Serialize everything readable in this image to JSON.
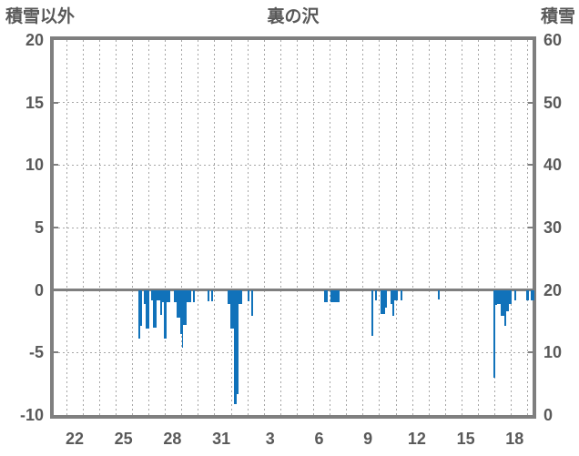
{
  "header": {
    "left_axis_title": "積雪以外",
    "chart_title": "裏の沢",
    "right_axis_title": "積雪"
  },
  "colors": {
    "bar": "#1172BA",
    "axis_frame": "#7F7F7F",
    "gridline": "#A6A6A6",
    "text": "#595959"
  },
  "chart_data": {
    "type": "bar",
    "title": "裏の沢",
    "legend": "none",
    "grid": "dashed, vertical line per day, horizontal line per 5 units",
    "left_axis": {
      "title": "積雪以外",
      "ticks": [
        "20",
        "15",
        "10",
        "5",
        "0",
        "-5",
        "-10"
      ],
      "range": [
        -10,
        20
      ]
    },
    "right_axis": {
      "title": "積雪",
      "ticks": [
        "60",
        "50",
        "40",
        "30",
        "20",
        "10",
        "0"
      ],
      "range": [
        0,
        60
      ]
    },
    "x_axis": {
      "tick_labels": [
        "22",
        "25",
        "28",
        "31",
        "3",
        "6",
        "9",
        "12",
        "15",
        "18"
      ],
      "note": "day-of-month, labels every 3 days"
    },
    "horizontal_gridline_values": [
      15,
      10,
      5,
      -5
    ],
    "vertical_gridline_count": 29,
    "zero_line_value": 0,
    "bars_unit": "left axis units, x/w in screenshot px",
    "bars": [
      {
        "x": 152.0,
        "w": 2.3,
        "v": -3.9
      },
      {
        "x": 154.3,
        "w": 2.0,
        "v": -2.9
      },
      {
        "x": 158.0,
        "w": 2.3,
        "v": -1.1
      },
      {
        "x": 160.3,
        "w": 3.7,
        "v": -3.1
      },
      {
        "x": 166.0,
        "w": 2.0,
        "v": -0.8
      },
      {
        "x": 168.0,
        "w": 4.0,
        "v": -3.0
      },
      {
        "x": 172.0,
        "w": 4.0,
        "v": -0.8
      },
      {
        "x": 176.0,
        "w": 2.0,
        "v": -2.0
      },
      {
        "x": 178.0,
        "w": 2.0,
        "v": -0.95
      },
      {
        "x": 180.0,
        "w": 3.0,
        "v": -3.9
      },
      {
        "x": 183.0,
        "w": 4.0,
        "v": -0.95
      },
      {
        "x": 191.3,
        "w": 2.7,
        "v": -0.95
      },
      {
        "x": 194.0,
        "w": 4.3,
        "v": -2.2
      },
      {
        "x": 198.3,
        "w": 1.4,
        "v": -3.5
      },
      {
        "x": 199.7,
        "w": 1.6,
        "v": -4.6
      },
      {
        "x": 201.3,
        "w": 3.7,
        "v": -2.8
      },
      {
        "x": 205.0,
        "w": 4.7,
        "v": -0.95
      },
      {
        "x": 212.0,
        "w": 2.0,
        "v": -1.0
      },
      {
        "x": 227.7,
        "w": 2.0,
        "v": -0.9
      },
      {
        "x": 231.7,
        "w": 2.0,
        "v": -0.9
      },
      {
        "x": 250.0,
        "w": 3.3,
        "v": -1.1
      },
      {
        "x": 253.3,
        "w": 3.4,
        "v": -3.1
      },
      {
        "x": 256.7,
        "w": 3.3,
        "v": -9.1
      },
      {
        "x": 260.0,
        "w": 1.7,
        "v": -8.3
      },
      {
        "x": 261.7,
        "w": 4.0,
        "v": -1.1
      },
      {
        "x": 271.7,
        "w": 2.3,
        "v": -0.9
      },
      {
        "x": 275.7,
        "w": 2.6,
        "v": -2.1
      },
      {
        "x": 356.0,
        "w": 1.7,
        "v": -0.95
      },
      {
        "x": 358.3,
        "w": 1.4,
        "v": -0.95
      },
      {
        "x": 363.3,
        "w": 10.0,
        "v": -0.95
      },
      {
        "x": 408.3,
        "w": 1.7,
        "v": -3.65
      },
      {
        "x": 412.0,
        "w": 2.0,
        "v": -0.8
      },
      {
        "x": 418.0,
        "w": 4.7,
        "v": -1.95
      },
      {
        "x": 422.7,
        "w": 2.0,
        "v": -1.4
      },
      {
        "x": 428.7,
        "w": 2.0,
        "v": -1.1
      },
      {
        "x": 430.7,
        "w": 2.0,
        "v": -2.05
      },
      {
        "x": 432.7,
        "w": 4.0,
        "v": -0.8
      },
      {
        "x": 440.3,
        "w": 2.0,
        "v": -0.8
      },
      {
        "x": 480.7,
        "w": 2.3,
        "v": -0.75
      },
      {
        "x": 541.7,
        "w": 2.3,
        "v": -7.0
      },
      {
        "x": 544.0,
        "w": 2.0,
        "v": -1.2
      },
      {
        "x": 546.0,
        "w": 4.0,
        "v": -1.15
      },
      {
        "x": 550.0,
        "w": 4.0,
        "v": -2.1
      },
      {
        "x": 554.0,
        "w": 2.0,
        "v": -2.9
      },
      {
        "x": 556.0,
        "w": 3.3,
        "v": -1.7
      },
      {
        "x": 559.3,
        "w": 2.4,
        "v": -1.15
      },
      {
        "x": 565.0,
        "w": 2.3,
        "v": -0.8
      },
      {
        "x": 578.3,
        "w": 2.4,
        "v": -0.8
      },
      {
        "x": 582.7,
        "w": 2.3,
        "v": -0.8
      },
      {
        "x": 585.0,
        "w": 2.3,
        "v": -0.8
      }
    ]
  }
}
